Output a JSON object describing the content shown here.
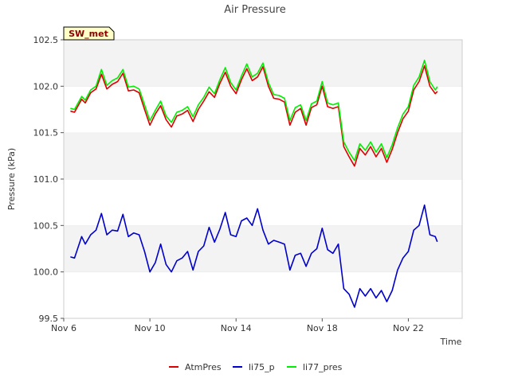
{
  "chart_data": {
    "type": "line",
    "title": "Air Pressure",
    "xlabel": "Time",
    "ylabel": "Pressure (kPa)",
    "ylim": [
      99.5,
      102.5
    ],
    "xlim": [
      "2023-11-06T00:00",
      "2023-11-24T12:00"
    ],
    "yticks": [
      "99.5",
      "100.0",
      "100.5",
      "101.0",
      "101.5",
      "102.0",
      "102.5"
    ],
    "xticks": [
      {
        "date": "2023-11-06T00:00",
        "label": "Nov 6"
      },
      {
        "date": "2023-11-10T00:00",
        "label": "Nov 10"
      },
      {
        "date": "2023-11-14T00:00",
        "label": "Nov 14"
      },
      {
        "date": "2023-11-18T00:00",
        "label": "Nov 18"
      },
      {
        "date": "2023-11-22T00:00",
        "label": "Nov 22"
      }
    ],
    "grid": "horizontal bands",
    "legend": "bottom-center",
    "annotation": "SW_met",
    "series": [
      {
        "name": "AtmPres",
        "color": "#dd0000",
        "points": [
          [
            "2023-11-06T08:00",
            101.73
          ],
          [
            "2023-11-06T12:00",
            101.72
          ],
          [
            "2023-11-06T20:00",
            101.86
          ],
          [
            "2023-11-07T00:00",
            101.82
          ],
          [
            "2023-11-07T06:00",
            101.93
          ],
          [
            "2023-11-07T12:00",
            101.97
          ],
          [
            "2023-11-07T18:00",
            102.13
          ],
          [
            "2023-11-08T00:00",
            101.97
          ],
          [
            "2023-11-08T06:00",
            102.02
          ],
          [
            "2023-11-08T12:00",
            102.05
          ],
          [
            "2023-11-08T18:00",
            102.14
          ],
          [
            "2023-11-09T00:00",
            101.95
          ],
          [
            "2023-11-09T06:00",
            101.96
          ],
          [
            "2023-11-09T12:00",
            101.93
          ],
          [
            "2023-11-09T18:00",
            101.75
          ],
          [
            "2023-11-10T00:00",
            101.58
          ],
          [
            "2023-11-10T06:00",
            101.7
          ],
          [
            "2023-11-10T12:00",
            101.79
          ],
          [
            "2023-11-10T18:00",
            101.64
          ],
          [
            "2023-11-11T00:00",
            101.56
          ],
          [
            "2023-11-11T06:00",
            101.68
          ],
          [
            "2023-11-11T12:00",
            101.7
          ],
          [
            "2023-11-11T18:00",
            101.74
          ],
          [
            "2023-11-12T00:00",
            101.62
          ],
          [
            "2023-11-12T06:00",
            101.75
          ],
          [
            "2023-11-12T12:00",
            101.84
          ],
          [
            "2023-11-12T18:00",
            101.94
          ],
          [
            "2023-11-13T00:00",
            101.88
          ],
          [
            "2023-11-13T06:00",
            102.03
          ],
          [
            "2023-11-13T12:00",
            102.15
          ],
          [
            "2023-11-13T18:00",
            102.0
          ],
          [
            "2023-11-14T00:00",
            101.92
          ],
          [
            "2023-11-14T06:00",
            102.07
          ],
          [
            "2023-11-14T12:00",
            102.19
          ],
          [
            "2023-11-14T18:00",
            102.06
          ],
          [
            "2023-11-15T00:00",
            102.1
          ],
          [
            "2023-11-15T06:00",
            102.21
          ],
          [
            "2023-11-15T12:00",
            102.0
          ],
          [
            "2023-11-15T18:00",
            101.87
          ],
          [
            "2023-11-16T00:00",
            101.86
          ],
          [
            "2023-11-16T06:00",
            101.83
          ],
          [
            "2023-11-16T12:00",
            101.58
          ],
          [
            "2023-11-16T18:00",
            101.72
          ],
          [
            "2023-11-17T00:00",
            101.76
          ],
          [
            "2023-11-17T06:00",
            101.58
          ],
          [
            "2023-11-17T12:00",
            101.77
          ],
          [
            "2023-11-17T18:00",
            101.8
          ],
          [
            "2023-11-18T00:00",
            102.0
          ],
          [
            "2023-11-18T06:00",
            101.78
          ],
          [
            "2023-11-18T12:00",
            101.76
          ],
          [
            "2023-11-18T18:00",
            101.78
          ],
          [
            "2023-11-19T00:00",
            101.35
          ],
          [
            "2023-11-19T06:00",
            101.24
          ],
          [
            "2023-11-19T12:00",
            101.14
          ],
          [
            "2023-11-19T18:00",
            101.33
          ],
          [
            "2023-11-20T00:00",
            101.26
          ],
          [
            "2023-11-20T06:00",
            101.35
          ],
          [
            "2023-11-20T12:00",
            101.24
          ],
          [
            "2023-11-20T18:00",
            101.33
          ],
          [
            "2023-11-21T00:00",
            101.18
          ],
          [
            "2023-11-21T06:00",
            101.32
          ],
          [
            "2023-11-21T12:00",
            101.5
          ],
          [
            "2023-11-21T18:00",
            101.65
          ],
          [
            "2023-11-22T00:00",
            101.73
          ],
          [
            "2023-11-22T06:00",
            101.96
          ],
          [
            "2023-11-22T12:00",
            102.05
          ],
          [
            "2023-11-22T18:00",
            102.22
          ],
          [
            "2023-11-23T00:00",
            102.0
          ],
          [
            "2023-11-23T06:00",
            101.92
          ],
          [
            "2023-11-23T08:00",
            101.94
          ]
        ]
      },
      {
        "name": "li75_p",
        "color": "#0000cc",
        "points": [
          [
            "2023-11-06T08:00",
            100.16
          ],
          [
            "2023-11-06T12:00",
            100.15
          ],
          [
            "2023-11-06T20:00",
            100.38
          ],
          [
            "2023-11-07T00:00",
            100.3
          ],
          [
            "2023-11-07T06:00",
            100.4
          ],
          [
            "2023-11-07T12:00",
            100.45
          ],
          [
            "2023-11-07T18:00",
            100.63
          ],
          [
            "2023-11-08T00:00",
            100.4
          ],
          [
            "2023-11-08T06:00",
            100.45
          ],
          [
            "2023-11-08T12:00",
            100.44
          ],
          [
            "2023-11-08T18:00",
            100.62
          ],
          [
            "2023-11-09T00:00",
            100.38
          ],
          [
            "2023-11-09T06:00",
            100.42
          ],
          [
            "2023-11-09T12:00",
            100.4
          ],
          [
            "2023-11-09T18:00",
            100.22
          ],
          [
            "2023-11-10T00:00",
            100.0
          ],
          [
            "2023-11-10T06:00",
            100.1
          ],
          [
            "2023-11-10T12:00",
            100.3
          ],
          [
            "2023-11-10T18:00",
            100.08
          ],
          [
            "2023-11-11T00:00",
            100.0
          ],
          [
            "2023-11-11T06:00",
            100.12
          ],
          [
            "2023-11-11T12:00",
            100.15
          ],
          [
            "2023-11-11T18:00",
            100.22
          ],
          [
            "2023-11-12T00:00",
            100.02
          ],
          [
            "2023-11-12T06:00",
            100.22
          ],
          [
            "2023-11-12T12:00",
            100.28
          ],
          [
            "2023-11-12T18:00",
            100.48
          ],
          [
            "2023-11-13T00:00",
            100.32
          ],
          [
            "2023-11-13T06:00",
            100.46
          ],
          [
            "2023-11-13T12:00",
            100.64
          ],
          [
            "2023-11-13T18:00",
            100.4
          ],
          [
            "2023-11-14T00:00",
            100.38
          ],
          [
            "2023-11-14T06:00",
            100.55
          ],
          [
            "2023-11-14T12:00",
            100.58
          ],
          [
            "2023-11-14T18:00",
            100.5
          ],
          [
            "2023-11-15T00:00",
            100.68
          ],
          [
            "2023-11-15T06:00",
            100.45
          ],
          [
            "2023-11-15T12:00",
            100.3
          ],
          [
            "2023-11-15T18:00",
            100.34
          ],
          [
            "2023-11-16T00:00",
            100.32
          ],
          [
            "2023-11-16T06:00",
            100.3
          ],
          [
            "2023-11-16T12:00",
            100.02
          ],
          [
            "2023-11-16T18:00",
            100.18
          ],
          [
            "2023-11-17T00:00",
            100.2
          ],
          [
            "2023-11-17T06:00",
            100.06
          ],
          [
            "2023-11-17T12:00",
            100.2
          ],
          [
            "2023-11-17T18:00",
            100.25
          ],
          [
            "2023-11-18T00:00",
            100.47
          ],
          [
            "2023-11-18T06:00",
            100.24
          ],
          [
            "2023-11-18T12:00",
            100.2
          ],
          [
            "2023-11-18T18:00",
            100.3
          ],
          [
            "2023-11-19T00:00",
            99.82
          ],
          [
            "2023-11-19T06:00",
            99.76
          ],
          [
            "2023-11-19T12:00",
            99.62
          ],
          [
            "2023-11-19T18:00",
            99.82
          ],
          [
            "2023-11-20T00:00",
            99.74
          ],
          [
            "2023-11-20T06:00",
            99.82
          ],
          [
            "2023-11-20T12:00",
            99.72
          ],
          [
            "2023-11-20T18:00",
            99.8
          ],
          [
            "2023-11-21T00:00",
            99.68
          ],
          [
            "2023-11-21T06:00",
            99.8
          ],
          [
            "2023-11-21T12:00",
            100.02
          ],
          [
            "2023-11-21T18:00",
            100.15
          ],
          [
            "2023-11-22T00:00",
            100.22
          ],
          [
            "2023-11-22T06:00",
            100.45
          ],
          [
            "2023-11-22T12:00",
            100.5
          ],
          [
            "2023-11-22T18:00",
            100.72
          ],
          [
            "2023-11-23T00:00",
            100.4
          ],
          [
            "2023-11-23T06:00",
            100.38
          ],
          [
            "2023-11-23T08:00",
            100.33
          ]
        ]
      },
      {
        "name": "li77_pres",
        "color": "#00ee00",
        "points": [
          [
            "2023-11-06T08:00",
            101.76
          ],
          [
            "2023-11-06T12:00",
            101.75
          ],
          [
            "2023-11-06T20:00",
            101.89
          ],
          [
            "2023-11-07T00:00",
            101.85
          ],
          [
            "2023-11-07T06:00",
            101.96
          ],
          [
            "2023-11-07T12:00",
            102.0
          ],
          [
            "2023-11-07T18:00",
            102.18
          ],
          [
            "2023-11-08T00:00",
            102.01
          ],
          [
            "2023-11-08T06:00",
            102.06
          ],
          [
            "2023-11-08T12:00",
            102.09
          ],
          [
            "2023-11-08T18:00",
            102.18
          ],
          [
            "2023-11-09T00:00",
            101.99
          ],
          [
            "2023-11-09T06:00",
            102.0
          ],
          [
            "2023-11-09T12:00",
            101.97
          ],
          [
            "2023-11-09T18:00",
            101.8
          ],
          [
            "2023-11-10T00:00",
            101.63
          ],
          [
            "2023-11-10T06:00",
            101.74
          ],
          [
            "2023-11-10T12:00",
            101.84
          ],
          [
            "2023-11-10T18:00",
            101.68
          ],
          [
            "2023-11-11T00:00",
            101.61
          ],
          [
            "2023-11-11T06:00",
            101.72
          ],
          [
            "2023-11-11T12:00",
            101.74
          ],
          [
            "2023-11-11T18:00",
            101.78
          ],
          [
            "2023-11-12T00:00",
            101.67
          ],
          [
            "2023-11-12T06:00",
            101.8
          ],
          [
            "2023-11-12T12:00",
            101.88
          ],
          [
            "2023-11-12T18:00",
            101.99
          ],
          [
            "2023-11-13T00:00",
            101.92
          ],
          [
            "2023-11-13T06:00",
            102.07
          ],
          [
            "2023-11-13T12:00",
            102.2
          ],
          [
            "2023-11-13T18:00",
            102.04
          ],
          [
            "2023-11-14T00:00",
            101.96
          ],
          [
            "2023-11-14T06:00",
            102.11
          ],
          [
            "2023-11-14T12:00",
            102.24
          ],
          [
            "2023-11-14T18:00",
            102.1
          ],
          [
            "2023-11-15T00:00",
            102.14
          ],
          [
            "2023-11-15T06:00",
            102.25
          ],
          [
            "2023-11-15T12:00",
            102.04
          ],
          [
            "2023-11-15T18:00",
            101.91
          ],
          [
            "2023-11-16T00:00",
            101.9
          ],
          [
            "2023-11-16T06:00",
            101.87
          ],
          [
            "2023-11-16T12:00",
            101.63
          ],
          [
            "2023-11-16T18:00",
            101.77
          ],
          [
            "2023-11-17T00:00",
            101.8
          ],
          [
            "2023-11-17T06:00",
            101.63
          ],
          [
            "2023-11-17T12:00",
            101.81
          ],
          [
            "2023-11-17T18:00",
            101.84
          ],
          [
            "2023-11-18T00:00",
            102.05
          ],
          [
            "2023-11-18T06:00",
            101.82
          ],
          [
            "2023-11-18T12:00",
            101.8
          ],
          [
            "2023-11-18T18:00",
            101.82
          ],
          [
            "2023-11-19T00:00",
            101.4
          ],
          [
            "2023-11-19T06:00",
            101.29
          ],
          [
            "2023-11-19T12:00",
            101.2
          ],
          [
            "2023-11-19T18:00",
            101.38
          ],
          [
            "2023-11-20T00:00",
            101.31
          ],
          [
            "2023-11-20T06:00",
            101.4
          ],
          [
            "2023-11-20T12:00",
            101.29
          ],
          [
            "2023-11-20T18:00",
            101.38
          ],
          [
            "2023-11-21T00:00",
            101.23
          ],
          [
            "2023-11-21T06:00",
            101.37
          ],
          [
            "2023-11-21T12:00",
            101.55
          ],
          [
            "2023-11-21T18:00",
            101.7
          ],
          [
            "2023-11-22T00:00",
            101.78
          ],
          [
            "2023-11-22T06:00",
            102.01
          ],
          [
            "2023-11-22T12:00",
            102.1
          ],
          [
            "2023-11-22T18:00",
            102.28
          ],
          [
            "2023-11-23T00:00",
            102.05
          ],
          [
            "2023-11-23T06:00",
            101.96
          ],
          [
            "2023-11-23T08:00",
            101.99
          ]
        ]
      }
    ]
  }
}
